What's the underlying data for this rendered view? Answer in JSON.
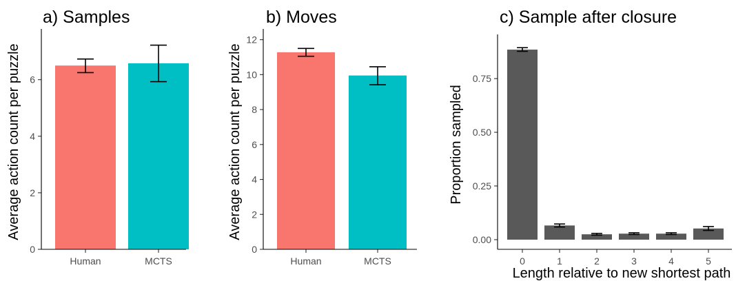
{
  "chart_data": [
    {
      "type": "bar",
      "title": "a) Samples",
      "xlabel": "",
      "ylabel": "Average action count per puzzle",
      "categories": [
        "Human",
        "MCTS"
      ],
      "values": [
        6.5,
        6.58
      ],
      "err_low": [
        6.25,
        5.93
      ],
      "err_high": [
        6.73,
        7.22
      ],
      "ylim": [
        0,
        7.6
      ],
      "yticks": [
        0,
        2,
        4,
        6
      ],
      "colors": [
        "#F8766D",
        "#00BFC4"
      ],
      "grid": false
    },
    {
      "type": "bar",
      "title": "b) Moves",
      "xlabel": "",
      "ylabel": "Average action count per puzzle",
      "categories": [
        "Human",
        "MCTS"
      ],
      "values": [
        11.28,
        9.95
      ],
      "err_low": [
        11.05,
        9.42
      ],
      "err_high": [
        11.5,
        10.45
      ],
      "ylim": [
        0,
        12.3
      ],
      "yticks": [
        0,
        2,
        4,
        6,
        8,
        10,
        12
      ],
      "colors": [
        "#F8766D",
        "#00BFC4"
      ],
      "grid": false
    },
    {
      "type": "bar",
      "title": "c) Sample after closure",
      "xlabel": "Length relative to new shortest path",
      "ylabel": "Proportion sampled",
      "categories": [
        "0",
        "1",
        "2",
        "3",
        "4",
        "5"
      ],
      "values": [
        0.885,
        0.066,
        0.025,
        0.028,
        0.028,
        0.052
      ],
      "err_low": [
        0.877,
        0.059,
        0.021,
        0.024,
        0.024,
        0.043
      ],
      "err_high": [
        0.894,
        0.073,
        0.029,
        0.032,
        0.032,
        0.061
      ],
      "ylim": [
        -0.045,
        0.93
      ],
      "yticks": [
        0.0,
        0.25,
        0.5,
        0.75
      ],
      "ytick_labels": [
        "0.00",
        "0.25",
        "0.50",
        "0.75"
      ],
      "colors": [
        "#595959"
      ],
      "grid": false
    }
  ]
}
